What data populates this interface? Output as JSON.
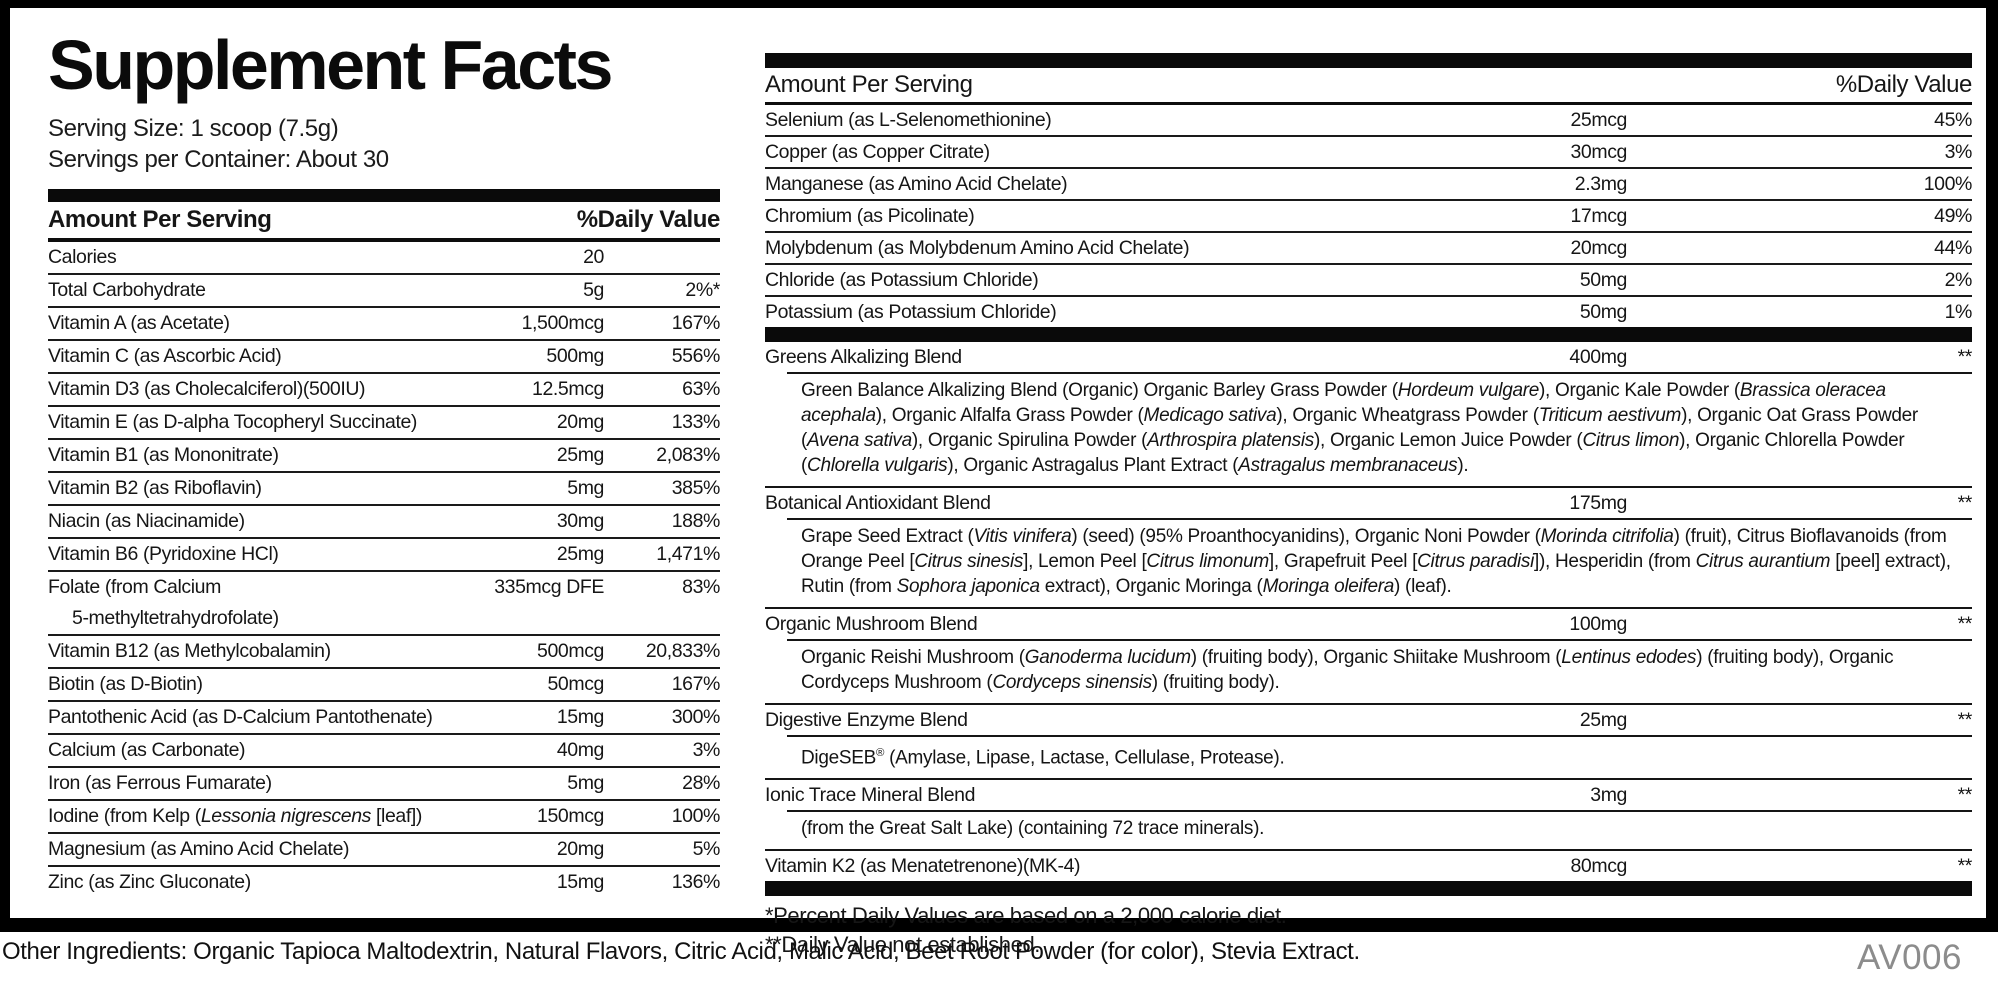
{
  "header": {
    "title": "Supplement Facts",
    "serving_size": "Serving Size: 1 scoop (7.5g)",
    "servings_per_container": "Servings per Container: About 30"
  },
  "table_headers": {
    "amount": "Amount Per Serving",
    "daily_value": "%Daily Value"
  },
  "left_table": {
    "rows": [
      {
        "name": "Calories",
        "amount": "20",
        "dv": ""
      },
      {
        "name": "Total Carbohydrate",
        "amount": "5g",
        "dv": "2%*"
      },
      {
        "name": "Vitamin A (as Acetate)",
        "amount": "1,500mcg",
        "dv": "167%"
      },
      {
        "name": "Vitamin C (as Ascorbic Acid)",
        "amount": "500mg",
        "dv": "556%"
      },
      {
        "name": "Vitamin D3 (as Cholecalciferol)(500IU)",
        "amount": "12.5mcg",
        "dv": "63%"
      },
      {
        "name": "Vitamin E (as D-alpha Tocopheryl Succinate)",
        "amount": "20mg",
        "dv": "133%"
      },
      {
        "name": "Vitamin B1 (as Mononitrate)",
        "amount": "25mg",
        "dv": "2,083%"
      },
      {
        "name": "Vitamin B2 (as Riboflavin)",
        "amount": "5mg",
        "dv": "385%"
      },
      {
        "name": "Niacin (as Niacinamide)",
        "amount": "30mg",
        "dv": "188%"
      },
      {
        "name": "Vitamin B6 (Pyridoxine HCl)",
        "amount": "25mg",
        "dv": "1,471%"
      },
      {
        "name": "Folate (from Calcium",
        "name2": "5-methyltetrahydrofolate)",
        "amount": "335mcg DFE",
        "dv": "83%"
      },
      {
        "name": "Vitamin B12 (as Methylcobalamin)",
        "amount": "500mcg",
        "dv": "20,833%"
      },
      {
        "name": "Biotin (as D-Biotin)",
        "amount": "50mcg",
        "dv": "167%"
      },
      {
        "name": "Pantothenic Acid (as D-Calcium Pantothenate)",
        "amount": "15mg",
        "dv": "300%"
      },
      {
        "name": "Calcium (as Carbonate)",
        "amount": "40mg",
        "dv": "3%"
      },
      {
        "name": "Iron (as Ferrous Fumarate)",
        "amount": "5mg",
        "dv": "28%"
      },
      {
        "name": [
          {
            "t": "Iodine (from Kelp ("
          },
          {
            "i": "Lessonia nigrescens"
          },
          {
            "t": " [leaf])"
          }
        ],
        "amount": "150mcg",
        "dv": "100%"
      },
      {
        "name": "Magnesium (as Amino Acid Chelate)",
        "amount": "20mg",
        "dv": "5%"
      },
      {
        "name": "Zinc (as Zinc Gluconate)",
        "amount": "15mg",
        "dv": "136%"
      }
    ]
  },
  "right_table": {
    "rows": [
      {
        "name": "Selenium (as L-Selenomethionine)",
        "amount": "25mcg",
        "dv": "45%"
      },
      {
        "name": "Copper (as Copper Citrate)",
        "amount": "30mcg",
        "dv": "3%"
      },
      {
        "name": "Manganese (as Amino Acid Chelate)",
        "amount": "2.3mg",
        "dv": "100%"
      },
      {
        "name": "Chromium (as Picolinate)",
        "amount": "17mcg",
        "dv": "49%"
      },
      {
        "name": "Molybdenum (as Molybdenum Amino Acid Chelate)",
        "amount": "20mcg",
        "dv": "44%"
      },
      {
        "name": "Chloride (as Potassium Chloride)",
        "amount": "50mg",
        "dv": "2%"
      },
      {
        "name": "Potassium (as Potassium Chloride)",
        "amount": "50mg",
        "dv": "1%"
      }
    ]
  },
  "blends": [
    {
      "name": "Greens Alkalizing Blend",
      "amount": "400mg",
      "dv": "**",
      "desc": [
        {
          "t": "Green Balance Alkalizing Blend (Organic) Organic Barley Grass Powder ("
        },
        {
          "i": "Hordeum vulgare"
        },
        {
          "t": "), Organic Kale Powder ("
        },
        {
          "i": "Brassica oleracea acephala"
        },
        {
          "t": "), Organic Alfalfa Grass Powder ("
        },
        {
          "i": "Medicago sativa"
        },
        {
          "t": "), Organic Wheatgrass Powder ("
        },
        {
          "i": "Triticum aestivum"
        },
        {
          "t": "), Organic Oat Grass Powder ("
        },
        {
          "i": "Avena sativa"
        },
        {
          "t": "), Organic Spirulina Powder ("
        },
        {
          "i": "Arthrospira platensis"
        },
        {
          "t": "), Organic Lemon Juice Powder ("
        },
        {
          "i": "Citrus limon"
        },
        {
          "t": "), Organic Chlorella Powder ("
        },
        {
          "i": "Chlorella vulgaris"
        },
        {
          "t": "), Organic Astragalus Plant Extract ("
        },
        {
          "i": "Astragalus membranaceus"
        },
        {
          "t": ")."
        }
      ]
    },
    {
      "name": "Botanical Antioxidant Blend",
      "amount": "175mg",
      "dv": "**",
      "desc": [
        {
          "t": "Grape Seed Extract ("
        },
        {
          "i": "Vitis vinifera"
        },
        {
          "t": ") (seed) (95% Proanthocyanidins), Organic Noni Powder ("
        },
        {
          "i": "Morinda citrifolia"
        },
        {
          "t": ") (fruit), Citrus Bioflavanoids (from Orange Peel ["
        },
        {
          "i": "Citrus sinesis"
        },
        {
          "t": "], Lemon Peel ["
        },
        {
          "i": "Citrus limonum"
        },
        {
          "t": "], Grapefruit Peel ["
        },
        {
          "i": "Citrus paradisi"
        },
        {
          "t": "]), Hesperidin (from "
        },
        {
          "i": "Citrus aurantium"
        },
        {
          "t": " [peel] extract), Rutin (from "
        },
        {
          "i": "Sophora japonica"
        },
        {
          "t": " extract), Organic Moringa ("
        },
        {
          "i": "Moringa oleifera"
        },
        {
          "t": ") (leaf)."
        }
      ]
    },
    {
      "name": "Organic Mushroom Blend",
      "amount": "100mg",
      "dv": "**",
      "desc": [
        {
          "t": "Organic Reishi Mushroom ("
        },
        {
          "i": "Ganoderma lucidum"
        },
        {
          "t": ") (fruiting body), Organic Shiitake Mushroom ("
        },
        {
          "i": "Lentinus edodes"
        },
        {
          "t": ") (fruiting body), Organic Cordyceps Mushroom ("
        },
        {
          "i": "Cordyceps sinensis"
        },
        {
          "t": ") (fruiting body)."
        }
      ]
    },
    {
      "name": "Digestive Enzyme Blend",
      "amount": "25mg",
      "dv": "**",
      "desc": [
        {
          "t": "DigeSEB"
        },
        {
          "sup": "®"
        },
        {
          "t": " (Amylase, Lipase, Lactase, Cellulase, Protease)."
        }
      ]
    },
    {
      "name": "Ionic Trace Mineral Blend",
      "amount": "3mg",
      "dv": "**",
      "desc": [
        {
          "t": "(from the Great Salt Lake) (containing 72 trace minerals)."
        }
      ]
    }
  ],
  "k2_row": {
    "name": "Vitamin K2 (as Menatetrenone)(MK-4)",
    "amount": "80mcg",
    "dv": "**"
  },
  "footnotes": {
    "line1": "*Percent Daily Values are based on a 2,000 calorie diet.",
    "line2": "**Daily Value not established."
  },
  "footer": {
    "other_ingredients": "Other Ingredients: Organic Tapioca Maltodextrin, Natural Flavors, Citric Acid, Malic Acid, Beet Root Powder (for color), Stevia Extract.",
    "code": "AV006"
  },
  "colors": {
    "ink": "#161616",
    "bar": "#0a0a0a",
    "code_gray": "#8c8c8c"
  }
}
